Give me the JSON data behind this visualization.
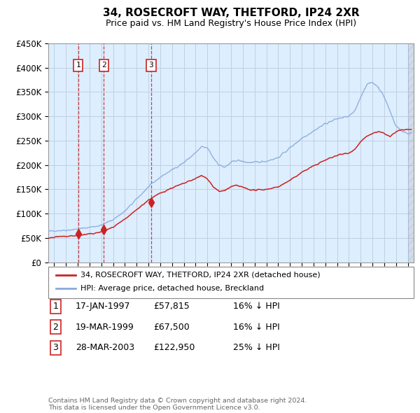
{
  "title": "34, ROSECROFT WAY, THETFORD, IP24 2XR",
  "subtitle": "Price paid vs. HM Land Registry's House Price Index (HPI)",
  "legend_line1": "34, ROSECROFT WAY, THETFORD, IP24 2XR (detached house)",
  "legend_line2": "HPI: Average price, detached house, Breckland",
  "sale_dates": [
    1997.04,
    1999.21,
    2003.23
  ],
  "sale_prices": [
    57815,
    67500,
    122950
  ],
  "sale_labels": [
    "1",
    "2",
    "3"
  ],
  "sale_info": [
    [
      "1",
      "17-JAN-1997",
      "£57,815",
      "16% ↓ HPI"
    ],
    [
      "2",
      "19-MAR-1999",
      "£67,500",
      "16% ↓ HPI"
    ],
    [
      "3",
      "28-MAR-2003",
      "£122,950",
      "25% ↓ HPI"
    ]
  ],
  "footer": [
    "Contains HM Land Registry data © Crown copyright and database right 2024.",
    "This data is licensed under the Open Government Licence v3.0."
  ],
  "red_color": "#cc2222",
  "blue_color": "#88aadd",
  "background_color": "#ddeeff",
  "grid_color": "#c0d0e0",
  "ylim": [
    0,
    450000
  ],
  "xlim": [
    1994.5,
    2025.5
  ]
}
